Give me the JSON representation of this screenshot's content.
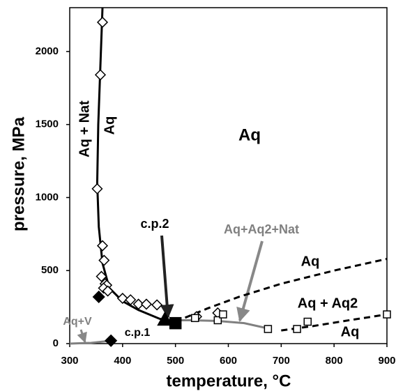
{
  "chart_data": {
    "type": "phase-diagram",
    "x_label": "temperature, °C",
    "y_label": "pressure, MPa",
    "xlim": [
      300,
      900
    ],
    "xticks": [
      300,
      400,
      500,
      600,
      700,
      800,
      900
    ],
    "ylim": [
      0,
      2300
    ],
    "yticks": [
      0,
      500,
      1000,
      1500,
      2000
    ],
    "curves": [
      {
        "color": "#000000",
        "dash": "solid",
        "x": [
          362,
          358,
          354,
          352,
          355,
          362,
          375,
          400,
          430,
          470,
          500
        ],
        "values": [
          2300,
          1900,
          1500,
          1100,
          800,
          550,
          380,
          290,
          230,
          170,
          145
        ]
      },
      {
        "color": "#808080",
        "dash": "solid",
        "x": [
          480,
          530,
          580,
          630,
          680
        ],
        "values": [
          160,
          160,
          155,
          140,
          100
        ]
      },
      {
        "color": "#000000",
        "dash": "dashed",
        "x": [
          500,
          560,
          620,
          700,
          800,
          900
        ],
        "values": [
          150,
          240,
          320,
          410,
          500,
          580
        ]
      },
      {
        "color": "#000000",
        "dash": "dashed",
        "x": [
          700,
          760,
          820,
          900
        ],
        "values": [
          90,
          120,
          155,
          200
        ]
      },
      {
        "color": "#808080",
        "dash": "solid",
        "x": [
          300,
          340,
          378
        ],
        "values": [
          0,
          5,
          20
        ]
      }
    ],
    "series": [
      {
        "marker": "diamond-open",
        "color": "#000000",
        "x": [
          362,
          358,
          352,
          362,
          365,
          360,
          367,
          370,
          364,
          372,
          400,
          415,
          430,
          445,
          465,
          540,
          580
        ],
        "values": [
          2200,
          1840,
          1060,
          670,
          570,
          460,
          410,
          400,
          380,
          360,
          310,
          300,
          270,
          270,
          265,
          185,
          210
        ]
      },
      {
        "marker": "diamond-filled",
        "color": "#000000",
        "x": [
          355,
          378
        ],
        "values": [
          320,
          20
        ]
      },
      {
        "marker": "square-open",
        "color": "#000000",
        "x": [
          537,
          580,
          590,
          675,
          730,
          750,
          900
        ],
        "values": [
          175,
          160,
          200,
          100,
          100,
          150,
          200
        ]
      },
      {
        "marker": "square-filled",
        "color": "#000000",
        "x": [
          500
        ],
        "values": [
          140
        ]
      },
      {
        "marker": "triangle-filled",
        "color": "#000000",
        "x": [
          480
        ],
        "values": [
          160
        ]
      }
    ],
    "annotations": [
      {
        "text": "Aq + Nat",
        "color": "#000000"
      },
      {
        "text": "Aq",
        "color": "#000000"
      },
      {
        "text": "Aq",
        "color": "#000000"
      },
      {
        "text": "c.p.2",
        "color": "#000000"
      },
      {
        "text": "Aq+Aq2+Nat",
        "color": "#808080"
      },
      {
        "text": "Aq",
        "color": "#000000"
      },
      {
        "text": "Aq + Aq2",
        "color": "#000000"
      },
      {
        "text": "Aq",
        "color": "#000000"
      },
      {
        "text": "Aq+V",
        "color": "#808080"
      },
      {
        "text": "c.p.1",
        "color": "#000000"
      }
    ]
  }
}
